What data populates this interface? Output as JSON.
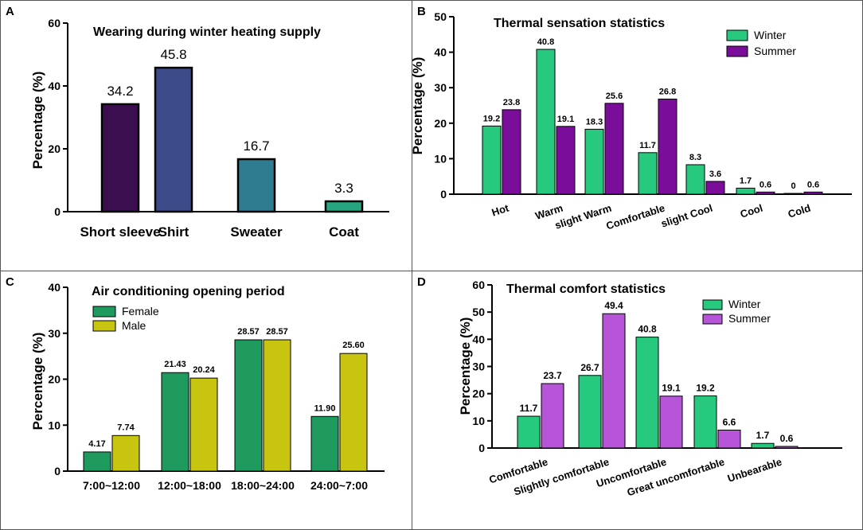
{
  "chart_data": [
    {
      "panel": "A",
      "type": "bar",
      "title": "Wearing during winter heating supply",
      "ylabel": "Percentage (%)",
      "xlabel": "",
      "ylim": [
        0,
        60
      ],
      "yticks": [
        0,
        20,
        40,
        60
      ],
      "categories": [
        "Short sleeve",
        "Shirt",
        "Sweater",
        "Coat"
      ],
      "series": [
        {
          "name": "Wearing",
          "values": [
            34.2,
            45.8,
            16.7,
            3.3
          ],
          "labels": [
            "34.2",
            "45.8",
            "16.7",
            "3.3"
          ]
        }
      ],
      "colors": [
        "#3b0f4f",
        "#3e4b8a",
        "#2f7c91",
        "#27a57f"
      ]
    },
    {
      "panel": "B",
      "type": "bar",
      "title": "Thermal sensation statistics",
      "ylabel": "Percentage (%)",
      "xlabel": "",
      "ylim": [
        0,
        50
      ],
      "yticks": [
        0,
        10,
        20,
        30,
        40,
        50
      ],
      "categories": [
        "Hot",
        "Warm",
        "slight Warm",
        "Comfortable",
        "slight Cool",
        "Cool",
        "Cold"
      ],
      "series": [
        {
          "name": "Winter",
          "values": [
            19.2,
            40.8,
            18.3,
            11.7,
            8.3,
            1.7,
            0
          ],
          "labels": [
            "19.2",
            "40.8",
            "18.3",
            "11.7",
            "8.3",
            "1.7",
            "0"
          ],
          "color": "#27c97f"
        },
        {
          "name": "Summer",
          "values": [
            23.8,
            19.1,
            25.6,
            26.8,
            3.6,
            0.6,
            0.6
          ],
          "labels": [
            "23.8",
            "19.1",
            "25.6",
            "26.8",
            "3.6",
            "0.6",
            "0.6"
          ],
          "color": "#7a0d9a"
        }
      ],
      "legend_position": "top-right"
    },
    {
      "panel": "C",
      "type": "bar",
      "title": "Air conditioning opening period",
      "ylabel": "Percentage (%)",
      "xlabel": "",
      "ylim": [
        0,
        40
      ],
      "yticks": [
        0,
        10,
        20,
        30,
        40
      ],
      "categories": [
        "7:00~12:00",
        "12:00~18:00",
        "18:00~24:00",
        "24:00~7:00"
      ],
      "series": [
        {
          "name": "Female",
          "values": [
            4.17,
            21.43,
            28.57,
            11.9
          ],
          "labels": [
            "4.17",
            "21.43",
            "28.57",
            "11.90"
          ],
          "color": "#1f9a5e"
        },
        {
          "name": "Male",
          "values": [
            7.74,
            20.24,
            28.57,
            25.6
          ],
          "labels": [
            "7.74",
            "20.24",
            "28.57",
            "25.60"
          ],
          "color": "#c7c510"
        }
      ],
      "legend_position": "top-left"
    },
    {
      "panel": "D",
      "type": "bar",
      "title": "Thermal comfort statistics",
      "ylabel": "Percentage (%)",
      "xlabel": "",
      "ylim": [
        0,
        60
      ],
      "yticks": [
        0,
        10,
        20,
        30,
        40,
        50,
        60
      ],
      "categories": [
        "Comfortable",
        "Slightly comfortable",
        "Uncomfortable",
        "Great uncomfortable",
        "Unbearable"
      ],
      "series": [
        {
          "name": "Winter",
          "values": [
            11.7,
            26.7,
            40.8,
            19.2,
            1.7
          ],
          "labels": [
            "11.7",
            "26.7",
            "40.8",
            "19.2",
            "1.7"
          ],
          "color": "#27c97f"
        },
        {
          "name": "Summer",
          "values": [
            23.7,
            49.4,
            19.1,
            6.6,
            0.6
          ],
          "labels": [
            "23.7",
            "49.4",
            "19.1",
            "6.6",
            "0.6"
          ],
          "color": "#b655d8"
        }
      ],
      "legend_position": "top-right"
    }
  ]
}
